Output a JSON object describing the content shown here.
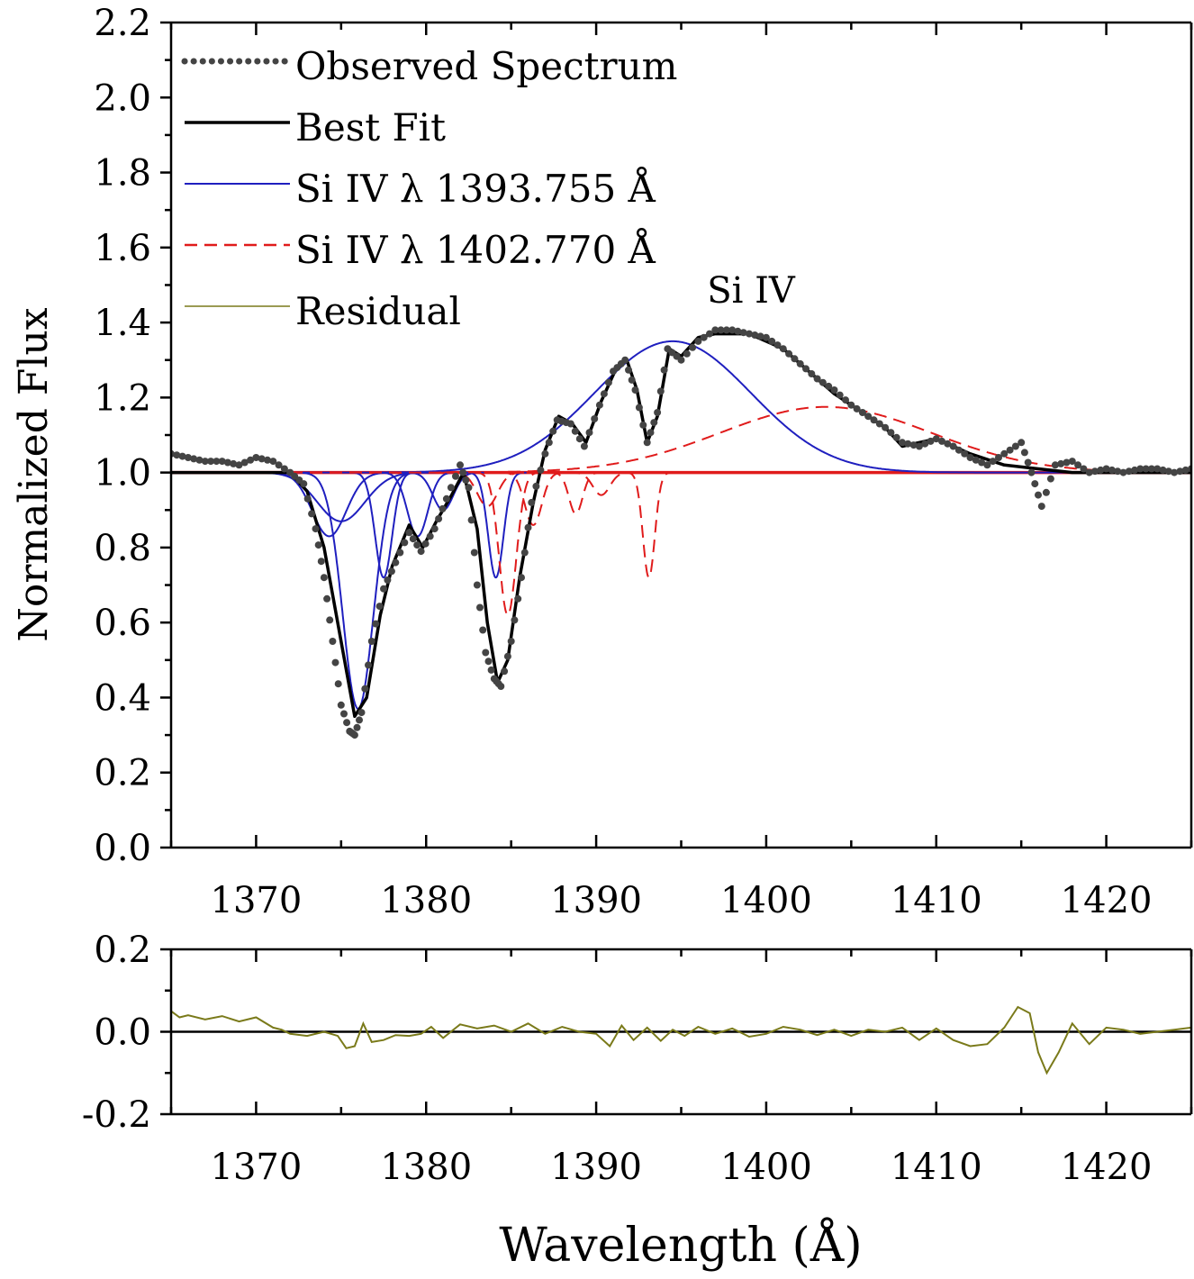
{
  "chart_data": [
    {
      "type": "line",
      "ylabel": "Normalized Flux",
      "annotation": "Si IV",
      "xlim": [
        1365,
        1425
      ],
      "ylim": [
        0.0,
        2.2
      ],
      "xticks": [
        1370,
        1380,
        1390,
        1400,
        1410,
        1420
      ],
      "yticks": [
        0.0,
        0.2,
        0.4,
        0.6,
        0.8,
        1.0,
        1.2,
        1.4,
        1.6,
        1.8,
        2.0,
        2.2
      ],
      "ytick_labels": [
        "0.0",
        "0.2",
        "0.4",
        "0.6",
        "0.8",
        "1.0",
        "1.2",
        "1.4",
        "1.6",
        "1.8",
        "2.0",
        "2.2"
      ],
      "xtick_labels": [
        "1370",
        "1380",
        "1390",
        "1400",
        "1410",
        "1420"
      ],
      "legend_position": "top-left",
      "grid": false,
      "colors": {
        "observed": "#444444",
        "fit": "#000000",
        "blue": "#1f1fbf",
        "red": "#e01b1b",
        "residual": "#7a7a1a"
      },
      "legend": [
        {
          "name": "Observed Spectrum",
          "style": "dotted",
          "color": "#444444"
        },
        {
          "name": "Best Fit",
          "style": "solid",
          "color": "#000000"
        },
        {
          "name": "Si IV λ 1393.755 Å",
          "style": "solid",
          "color": "#1f1fbf"
        },
        {
          "name": "Si IV λ 1402.770 Å",
          "style": "dashed",
          "color": "#e01b1b"
        },
        {
          "name": "Residual",
          "style": "thin",
          "color": "#7a7a1a"
        }
      ],
      "series": [
        {
          "name": "Observed Spectrum",
          "style": "dotted",
          "x": [
            1365,
            1366,
            1367,
            1368,
            1369,
            1370,
            1371,
            1372,
            1372.8,
            1373.5,
            1374,
            1374.5,
            1375,
            1375.5,
            1375.8,
            1376.2,
            1376.8,
            1377.5,
            1378.2,
            1379,
            1379.7,
            1380.5,
            1381.2,
            1382,
            1382.5,
            1383,
            1383.5,
            1384,
            1384.4,
            1385,
            1385.6,
            1386.2,
            1387,
            1387.7,
            1388.5,
            1389.3,
            1390.2,
            1391,
            1391.7,
            1392.3,
            1393,
            1393.6,
            1394.2,
            1395,
            1396,
            1397,
            1398,
            1399,
            1400,
            1401,
            1402,
            1403,
            1404,
            1405,
            1406,
            1407,
            1408,
            1409,
            1410,
            1411,
            1412,
            1413,
            1414,
            1415,
            1415.6,
            1416.2,
            1417,
            1418,
            1419,
            1420,
            1421,
            1422,
            1423,
            1424,
            1425
          ],
          "y": [
            1.05,
            1.04,
            1.03,
            1.03,
            1.02,
            1.04,
            1.03,
            1.0,
            0.97,
            0.85,
            0.72,
            0.55,
            0.38,
            0.31,
            0.3,
            0.36,
            0.55,
            0.69,
            0.76,
            0.84,
            0.79,
            0.85,
            0.93,
            1.02,
            0.96,
            0.7,
            0.52,
            0.45,
            0.43,
            0.55,
            0.72,
            0.92,
            1.05,
            1.14,
            1.13,
            1.07,
            1.18,
            1.27,
            1.3,
            1.22,
            1.08,
            1.16,
            1.33,
            1.3,
            1.35,
            1.38,
            1.38,
            1.37,
            1.36,
            1.33,
            1.29,
            1.25,
            1.22,
            1.18,
            1.15,
            1.12,
            1.08,
            1.07,
            1.09,
            1.07,
            1.04,
            1.02,
            1.05,
            1.08,
            1.0,
            0.91,
            1.02,
            1.03,
            1.0,
            1.01,
            1.0,
            1.01,
            1.01,
            1.0,
            1.01
          ]
        },
        {
          "name": "Best Fit",
          "style": "solid",
          "x": [
            1365,
            1370,
            1372,
            1373,
            1374,
            1375,
            1375.8,
            1376.5,
            1377.3,
            1378,
            1379,
            1379.8,
            1380.6,
            1381.5,
            1382.2,
            1383,
            1383.6,
            1384.2,
            1384.8,
            1385.5,
            1386.3,
            1387,
            1387.8,
            1388.6,
            1389.4,
            1390.3,
            1391.2,
            1391.8,
            1392.4,
            1393,
            1393.6,
            1394.3,
            1395,
            1396,
            1397,
            1398,
            1399,
            1400,
            1401,
            1402,
            1403,
            1404,
            1405,
            1406,
            1407,
            1408,
            1409,
            1410,
            1411,
            1412,
            1414,
            1416,
            1418,
            1420,
            1425
          ],
          "y": [
            1.0,
            1.0,
            1.0,
            0.95,
            0.8,
            0.55,
            0.35,
            0.4,
            0.62,
            0.75,
            0.86,
            0.8,
            0.87,
            0.94,
            1.0,
            0.85,
            0.6,
            0.44,
            0.5,
            0.72,
            0.92,
            1.06,
            1.15,
            1.13,
            1.08,
            1.19,
            1.28,
            1.3,
            1.22,
            1.08,
            1.15,
            1.33,
            1.31,
            1.36,
            1.37,
            1.37,
            1.37,
            1.35,
            1.33,
            1.29,
            1.25,
            1.21,
            1.18,
            1.15,
            1.12,
            1.07,
            1.08,
            1.09,
            1.07,
            1.05,
            1.02,
            1.01,
            1.0,
            1.0,
            1.0
          ]
        },
        {
          "name": "Si IV λ 1393.755 Å",
          "style": "solid",
          "emission": {
            "center": 1394.5,
            "amplitude": 0.35,
            "sigma": 4.6
          },
          "absorptions": [
            {
              "center": 1374.3,
              "depth": 0.17,
              "sigma": 1.0
            },
            {
              "center": 1375.0,
              "depth": 0.13,
              "sigma": 1.4
            },
            {
              "center": 1376.0,
              "depth": 0.63,
              "sigma": 0.9
            },
            {
              "center": 1377.5,
              "depth": 0.28,
              "sigma": 0.5
            },
            {
              "center": 1379.5,
              "depth": 0.17,
              "sigma": 0.6
            },
            {
              "center": 1381.0,
              "depth": 0.1,
              "sigma": 0.6
            },
            {
              "center": 1384.1,
              "depth": 0.28,
              "sigma": 0.45
            }
          ]
        },
        {
          "name": "Si IV λ 1402.770 Å",
          "style": "dashed",
          "emission": {
            "center": 1403.5,
            "amplitude": 0.175,
            "sigma": 6.2
          },
          "absorptions": [
            {
              "center": 1383.6,
              "depth": 0.09,
              "sigma": 0.6
            },
            {
              "center": 1384.8,
              "depth": 0.38,
              "sigma": 0.5
            },
            {
              "center": 1386.3,
              "depth": 0.14,
              "sigma": 0.5
            },
            {
              "center": 1388.8,
              "depth": 0.11,
              "sigma": 0.4
            },
            {
              "center": 1390.3,
              "depth": 0.06,
              "sigma": 0.5
            },
            {
              "center": 1393.1,
              "depth": 0.28,
              "sigma": 0.35
            }
          ]
        }
      ]
    },
    {
      "type": "line",
      "xlabel": "Wavelength (Å)",
      "xlim": [
        1365,
        1425
      ],
      "ylim": [
        -0.2,
        0.2
      ],
      "xticks": [
        1370,
        1380,
        1390,
        1400,
        1410,
        1420
      ],
      "yticks": [
        -0.2,
        0.0,
        0.2
      ],
      "ytick_labels": [
        "-0.2",
        "0.0",
        "0.2"
      ],
      "xtick_labels": [
        "1370",
        "1380",
        "1390",
        "1400",
        "1410",
        "1420"
      ],
      "zero_line": 0.0,
      "series": [
        {
          "name": "Residual",
          "x": [
            1365,
            1365.5,
            1366,
            1367,
            1368,
            1369,
            1370,
            1371,
            1371.5,
            1372,
            1373,
            1374,
            1374.8,
            1375.3,
            1375.8,
            1376.3,
            1376.8,
            1377.5,
            1378.2,
            1379,
            1379.7,
            1380.3,
            1381,
            1382,
            1383,
            1384,
            1385,
            1386,
            1387,
            1388,
            1389,
            1390,
            1390.8,
            1391.5,
            1392.2,
            1393,
            1393.8,
            1394.5,
            1395.2,
            1396,
            1397,
            1398,
            1399,
            1400,
            1401,
            1402,
            1403,
            1404,
            1405,
            1406,
            1407,
            1408,
            1409,
            1410,
            1411,
            1412,
            1413,
            1414,
            1414.8,
            1415.5,
            1416,
            1416.5,
            1417.2,
            1418,
            1419,
            1420,
            1421,
            1422,
            1423,
            1424,
            1425
          ],
          "y": [
            0.05,
            0.035,
            0.04,
            0.03,
            0.038,
            0.025,
            0.035,
            0.01,
            0.005,
            -0.005,
            -0.01,
            0.0,
            -0.01,
            -0.04,
            -0.035,
            0.02,
            -0.025,
            -0.02,
            -0.008,
            -0.01,
            -0.005,
            0.012,
            -0.015,
            0.018,
            0.008,
            0.015,
            0.0,
            0.02,
            -0.005,
            0.012,
            0.0,
            -0.005,
            -0.035,
            0.015,
            -0.02,
            0.01,
            -0.022,
            0.005,
            -0.01,
            0.012,
            -0.005,
            0.008,
            -0.012,
            -0.005,
            0.012,
            0.005,
            -0.008,
            0.005,
            -0.01,
            0.005,
            0.0,
            0.01,
            -0.02,
            0.008,
            -0.02,
            -0.035,
            -0.03,
            0.01,
            0.06,
            0.045,
            -0.05,
            -0.1,
            -0.05,
            0.02,
            -0.03,
            0.01,
            0.005,
            -0.005,
            0.0,
            0.005,
            0.01
          ]
        }
      ]
    }
  ]
}
